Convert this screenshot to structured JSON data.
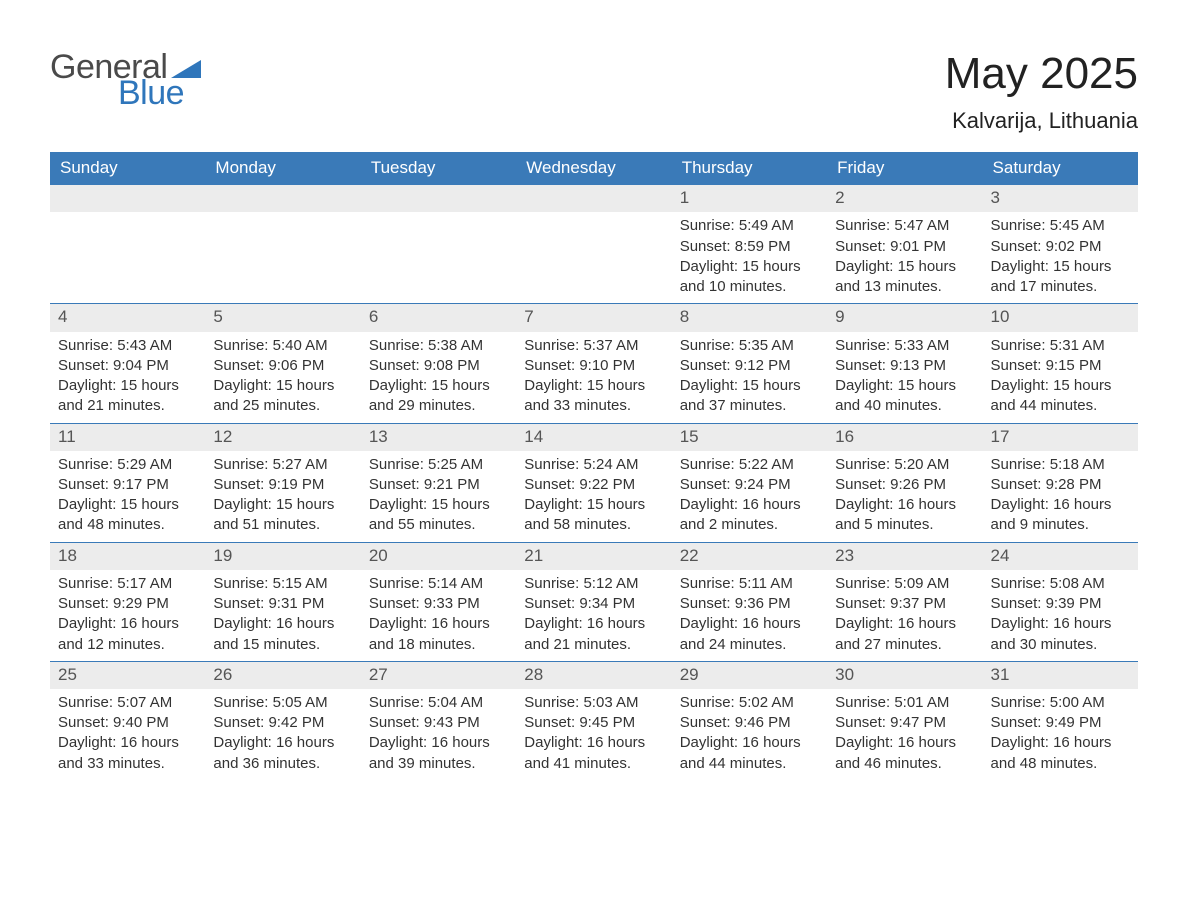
{
  "brand": {
    "word1": "General",
    "word2": "Blue",
    "accent_color": "#2f76bb",
    "text_color": "#4a4a4a"
  },
  "title": "May 2025",
  "location": "Kalvarija, Lithuania",
  "colors": {
    "header_bg": "#3a7ab8",
    "header_text": "#ffffff",
    "daynum_bg": "#ececec",
    "daynum_text": "#555555",
    "body_text": "#333333",
    "rule": "#3a7ab8",
    "page_bg": "#ffffff"
  },
  "weekdays": [
    "Sunday",
    "Monday",
    "Tuesday",
    "Wednesday",
    "Thursday",
    "Friday",
    "Saturday"
  ],
  "weeks": [
    [
      null,
      null,
      null,
      null,
      {
        "n": "1",
        "sunrise": "5:49 AM",
        "sunset": "8:59 PM",
        "daylight": "15 hours and 10 minutes."
      },
      {
        "n": "2",
        "sunrise": "5:47 AM",
        "sunset": "9:01 PM",
        "daylight": "15 hours and 13 minutes."
      },
      {
        "n": "3",
        "sunrise": "5:45 AM",
        "sunset": "9:02 PM",
        "daylight": "15 hours and 17 minutes."
      }
    ],
    [
      {
        "n": "4",
        "sunrise": "5:43 AM",
        "sunset": "9:04 PM",
        "daylight": "15 hours and 21 minutes."
      },
      {
        "n": "5",
        "sunrise": "5:40 AM",
        "sunset": "9:06 PM",
        "daylight": "15 hours and 25 minutes."
      },
      {
        "n": "6",
        "sunrise": "5:38 AM",
        "sunset": "9:08 PM",
        "daylight": "15 hours and 29 minutes."
      },
      {
        "n": "7",
        "sunrise": "5:37 AM",
        "sunset": "9:10 PM",
        "daylight": "15 hours and 33 minutes."
      },
      {
        "n": "8",
        "sunrise": "5:35 AM",
        "sunset": "9:12 PM",
        "daylight": "15 hours and 37 minutes."
      },
      {
        "n": "9",
        "sunrise": "5:33 AM",
        "sunset": "9:13 PM",
        "daylight": "15 hours and 40 minutes."
      },
      {
        "n": "10",
        "sunrise": "5:31 AM",
        "sunset": "9:15 PM",
        "daylight": "15 hours and 44 minutes."
      }
    ],
    [
      {
        "n": "11",
        "sunrise": "5:29 AM",
        "sunset": "9:17 PM",
        "daylight": "15 hours and 48 minutes."
      },
      {
        "n": "12",
        "sunrise": "5:27 AM",
        "sunset": "9:19 PM",
        "daylight": "15 hours and 51 minutes."
      },
      {
        "n": "13",
        "sunrise": "5:25 AM",
        "sunset": "9:21 PM",
        "daylight": "15 hours and 55 minutes."
      },
      {
        "n": "14",
        "sunrise": "5:24 AM",
        "sunset": "9:22 PM",
        "daylight": "15 hours and 58 minutes."
      },
      {
        "n": "15",
        "sunrise": "5:22 AM",
        "sunset": "9:24 PM",
        "daylight": "16 hours and 2 minutes."
      },
      {
        "n": "16",
        "sunrise": "5:20 AM",
        "sunset": "9:26 PM",
        "daylight": "16 hours and 5 minutes."
      },
      {
        "n": "17",
        "sunrise": "5:18 AM",
        "sunset": "9:28 PM",
        "daylight": "16 hours and 9 minutes."
      }
    ],
    [
      {
        "n": "18",
        "sunrise": "5:17 AM",
        "sunset": "9:29 PM",
        "daylight": "16 hours and 12 minutes."
      },
      {
        "n": "19",
        "sunrise": "5:15 AM",
        "sunset": "9:31 PM",
        "daylight": "16 hours and 15 minutes."
      },
      {
        "n": "20",
        "sunrise": "5:14 AM",
        "sunset": "9:33 PM",
        "daylight": "16 hours and 18 minutes."
      },
      {
        "n": "21",
        "sunrise": "5:12 AM",
        "sunset": "9:34 PM",
        "daylight": "16 hours and 21 minutes."
      },
      {
        "n": "22",
        "sunrise": "5:11 AM",
        "sunset": "9:36 PM",
        "daylight": "16 hours and 24 minutes."
      },
      {
        "n": "23",
        "sunrise": "5:09 AM",
        "sunset": "9:37 PM",
        "daylight": "16 hours and 27 minutes."
      },
      {
        "n": "24",
        "sunrise": "5:08 AM",
        "sunset": "9:39 PM",
        "daylight": "16 hours and 30 minutes."
      }
    ],
    [
      {
        "n": "25",
        "sunrise": "5:07 AM",
        "sunset": "9:40 PM",
        "daylight": "16 hours and 33 minutes."
      },
      {
        "n": "26",
        "sunrise": "5:05 AM",
        "sunset": "9:42 PM",
        "daylight": "16 hours and 36 minutes."
      },
      {
        "n": "27",
        "sunrise": "5:04 AM",
        "sunset": "9:43 PM",
        "daylight": "16 hours and 39 minutes."
      },
      {
        "n": "28",
        "sunrise": "5:03 AM",
        "sunset": "9:45 PM",
        "daylight": "16 hours and 41 minutes."
      },
      {
        "n": "29",
        "sunrise": "5:02 AM",
        "sunset": "9:46 PM",
        "daylight": "16 hours and 44 minutes."
      },
      {
        "n": "30",
        "sunrise": "5:01 AM",
        "sunset": "9:47 PM",
        "daylight": "16 hours and 46 minutes."
      },
      {
        "n": "31",
        "sunrise": "5:00 AM",
        "sunset": "9:49 PM",
        "daylight": "16 hours and 48 minutes."
      }
    ]
  ],
  "labels": {
    "sunrise": "Sunrise: ",
    "sunset": "Sunset: ",
    "daylight": "Daylight: "
  }
}
